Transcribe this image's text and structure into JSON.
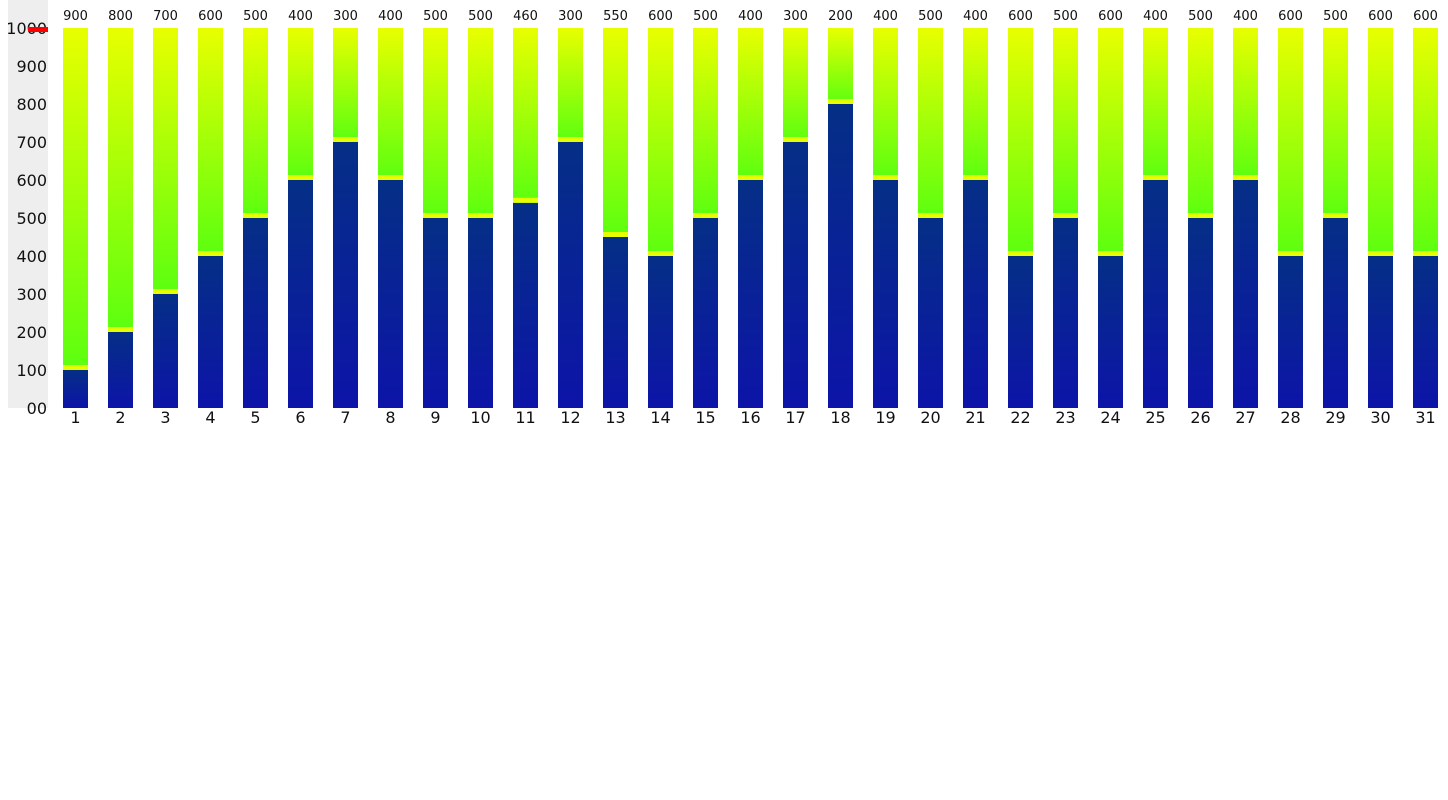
{
  "chart_data": {
    "type": "bar",
    "stacked": true,
    "ylim": [
      0,
      1000
    ],
    "y_ticks": [
      "00",
      "100",
      "200",
      "300",
      "400",
      "500",
      "600",
      "700",
      "800",
      "900",
      "1000"
    ],
    "categories": [
      "1",
      "2",
      "3",
      "4",
      "5",
      "6",
      "7",
      "8",
      "9",
      "10",
      "11",
      "12",
      "13",
      "14",
      "15",
      "16",
      "17",
      "18",
      "19",
      "20",
      "21",
      "22",
      "23",
      "24",
      "25",
      "26",
      "27",
      "28",
      "29",
      "30",
      "31"
    ],
    "series": [
      {
        "color": "#0d1aa6",
        "values": [
          100,
          200,
          300,
          400,
          500,
          600,
          700,
          600,
          500,
          500,
          540,
          700,
          450,
          400,
          500,
          600,
          700,
          800,
          600,
          500,
          600,
          400,
          500,
          400,
          600,
          500,
          600,
          400,
          500,
          400,
          400
        ]
      },
      {
        "color": "#7cff00",
        "values": [
          900,
          800,
          700,
          600,
          500,
          400,
          300,
          400,
          500,
          500,
          460,
          300,
          550,
          600,
          500,
          400,
          300,
          200,
          400,
          500,
          400,
          600,
          500,
          600,
          400,
          500,
          400,
          600,
          500,
          600,
          600
        ]
      }
    ],
    "top_labels": [
      "900",
      "800",
      "700",
      "600",
      "500",
      "400",
      "300",
      "400",
      "500",
      "500",
      "460",
      "300",
      "550",
      "600",
      "500",
      "400",
      "300",
      "200",
      "400",
      "500",
      "400",
      "600",
      "500",
      "600",
      "400",
      "500",
      "400",
      "600",
      "500",
      "600",
      "600"
    ],
    "reference_line": {
      "value": 1000,
      "color": "#ff0000"
    },
    "grid": false,
    "legend": "none"
  }
}
